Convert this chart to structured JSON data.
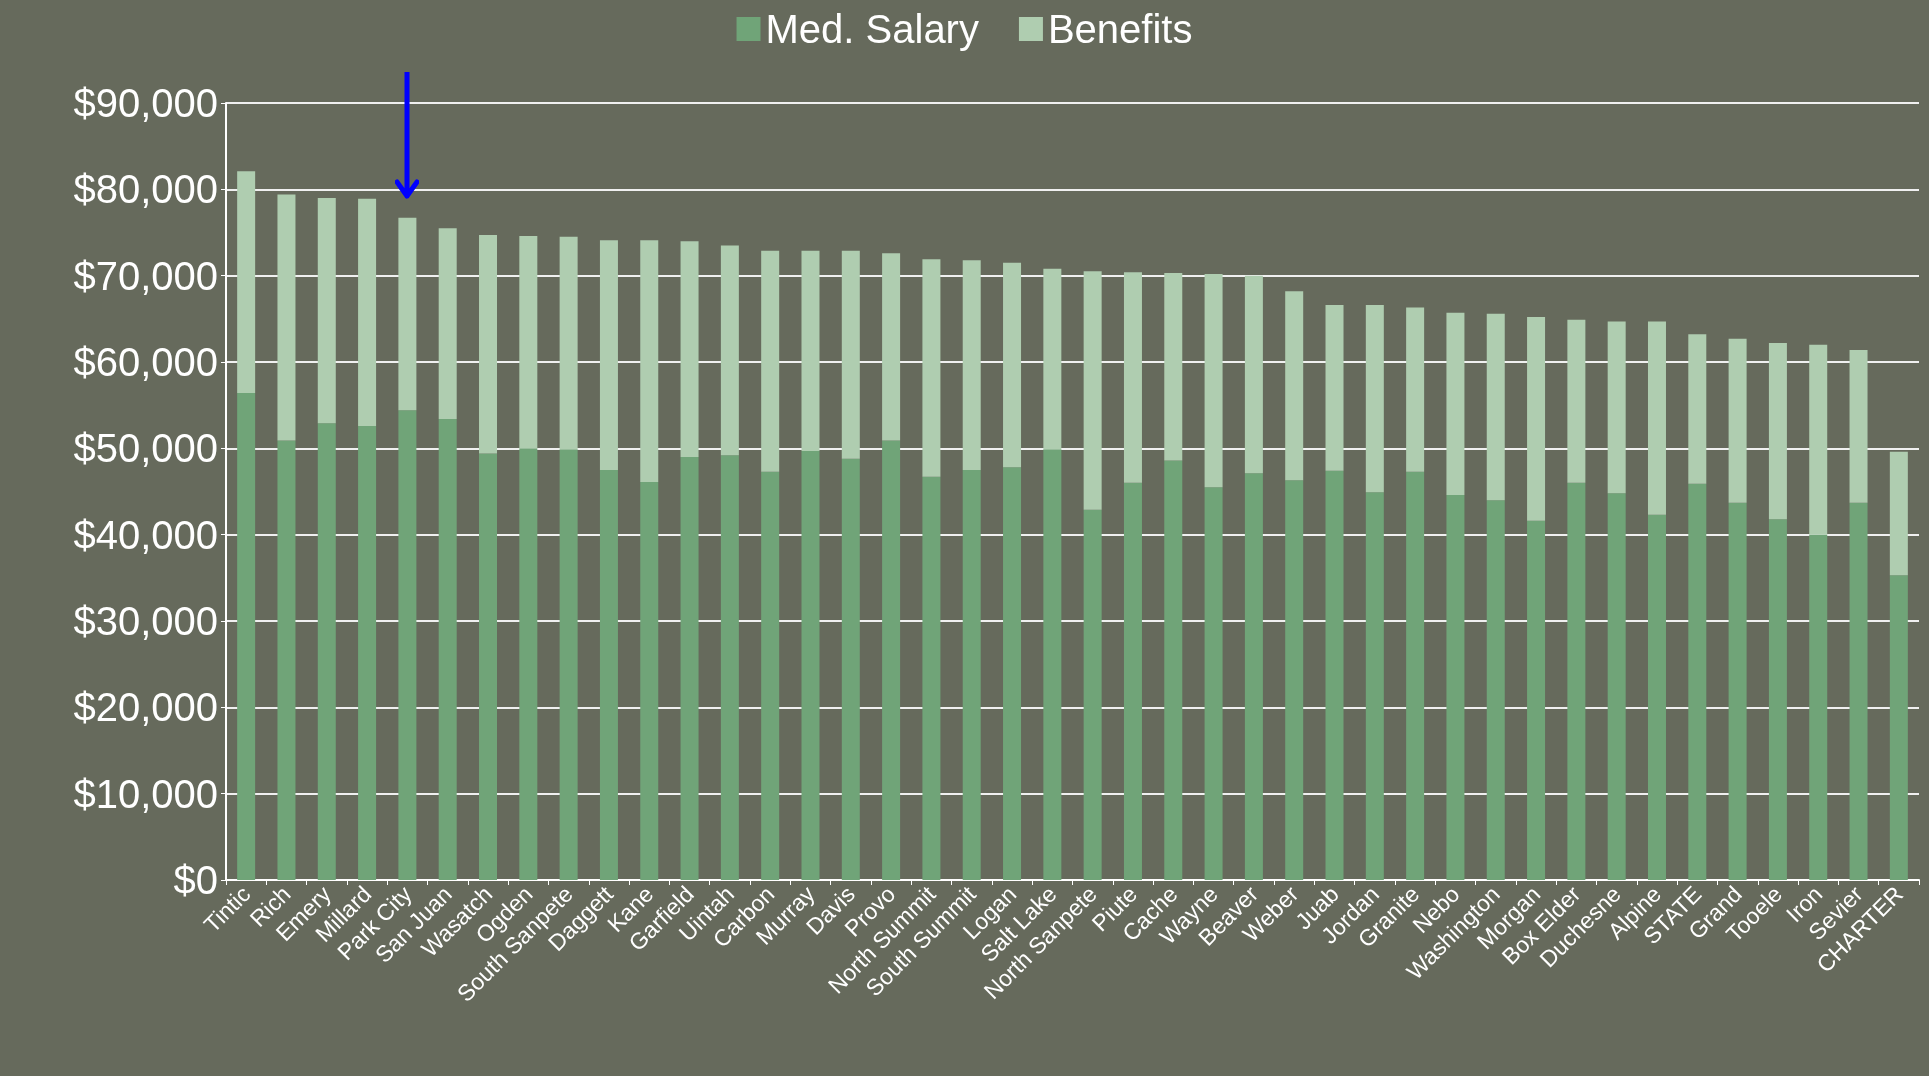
{
  "chart_data": {
    "type": "bar",
    "stacked": true,
    "categories": [
      "Tintic",
      "Rich",
      "Emery",
      "Millard",
      "Park City",
      "San Juan",
      "Wasatch",
      "Ogden",
      "South Sanpete",
      "Daggett",
      "Kane",
      "Garfield",
      "Uintah",
      "Carbon",
      "Murray",
      "Davis",
      "Provo",
      "North Summit",
      "South Summit",
      "Logan",
      "Salt Lake",
      "North Sanpete",
      "Piute",
      "Cache",
      "Wayne",
      "Beaver",
      "Weber",
      "Juab",
      "Jordan",
      "Granite",
      "Nebo",
      "Washington",
      "Morgan",
      "Box Elder",
      "Duchesne",
      "Alpine",
      "STATE",
      "Grand",
      "Tooele",
      "Iron",
      "Sevier",
      "CHARTER"
    ],
    "series": [
      {
        "name": "Med. Salary",
        "color": "#70a478",
        "values": [
          56400,
          50900,
          52900,
          52600,
          54400,
          53400,
          49400,
          50000,
          49900,
          47500,
          46100,
          49000,
          49200,
          47300,
          49700,
          48800,
          50900,
          46700,
          47500,
          47800,
          49900,
          42900,
          46000,
          48600,
          45500,
          47100,
          46300,
          47400,
          44900,
          47300,
          44600,
          44000,
          41600,
          46000,
          44800,
          42300,
          45900,
          43700,
          41800,
          40000,
          43700,
          35300
        ]
      },
      {
        "name": "Benefits",
        "color": "#afcdb0",
        "values": [
          25700,
          28500,
          26100,
          26300,
          22300,
          22100,
          25300,
          24600,
          24600,
          26600,
          28000,
          25000,
          24300,
          25600,
          23200,
          24100,
          21700,
          25200,
          24300,
          23700,
          20900,
          27600,
          24400,
          21700,
          24700,
          22900,
          21900,
          19200,
          21700,
          19000,
          21100,
          21600,
          23600,
          18900,
          19900,
          22400,
          17300,
          19000,
          20400,
          22000,
          17700,
          14300
        ]
      }
    ],
    "ylim": [
      0,
      90000
    ],
    "yticks": [
      {
        "value": 0,
        "label": "$0"
      },
      {
        "value": 10000,
        "label": "$10,000"
      },
      {
        "value": 20000,
        "label": "$20,000"
      },
      {
        "value": 30000,
        "label": "$30,000"
      },
      {
        "value": 40000,
        "label": "$40,000"
      },
      {
        "value": 50000,
        "label": "$50,000"
      },
      {
        "value": 60000,
        "label": "$60,000"
      },
      {
        "value": 70000,
        "label": "$70,000"
      },
      {
        "value": 80000,
        "label": "$80,000"
      },
      {
        "value": 90000,
        "label": "$90,000"
      }
    ],
    "grid": "y",
    "legend": "top"
  }
}
